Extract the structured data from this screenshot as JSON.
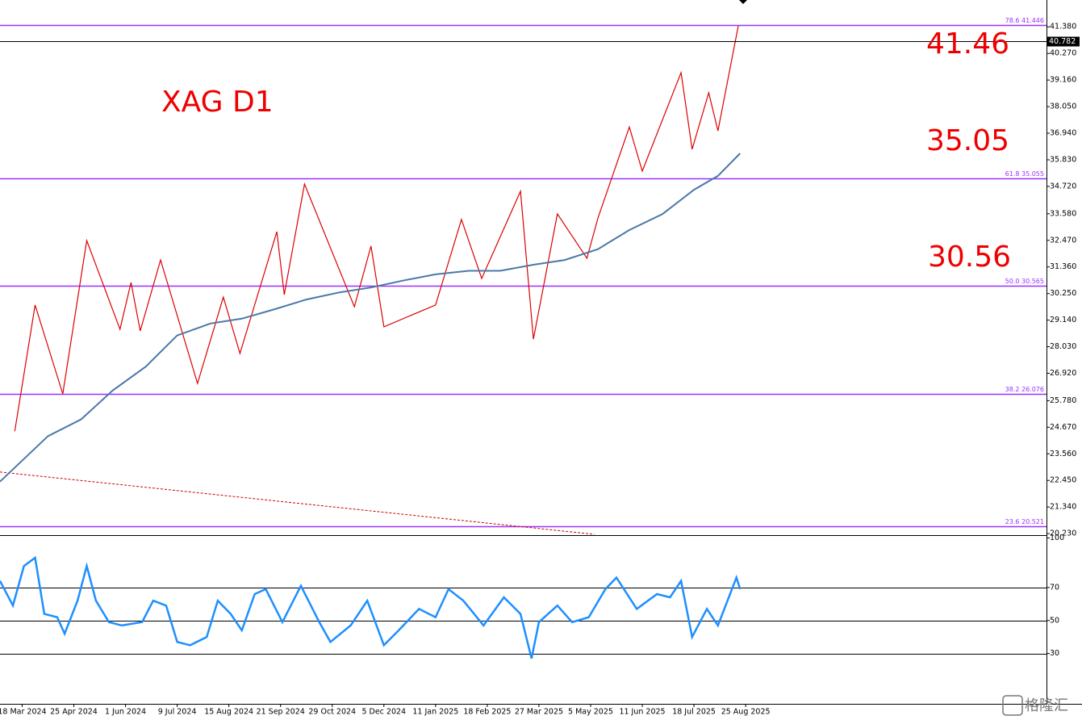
{
  "chart_data": [
    {
      "type": "line",
      "title": "XAG D1",
      "annotations": [
        "41.46",
        "35.05",
        "30.56"
      ],
      "xlim": [
        -12,
        555
      ],
      "xticks": [
        {
          "value": 0,
          "label": "18 Mar 2024"
        },
        {
          "value": 28,
          "label": "25 Apr 2024"
        },
        {
          "value": 56,
          "label": "1 Jun 2024"
        },
        {
          "value": 84,
          "label": "9 Jul 2024"
        },
        {
          "value": 112,
          "label": "15 Aug 2024"
        },
        {
          "value": 140,
          "label": "21 Sep 2024"
        },
        {
          "value": 168,
          "label": "29 Oct 2024"
        },
        {
          "value": 196,
          "label": "5 Dec 2024"
        },
        {
          "value": 224,
          "label": "11 Jan 2025"
        },
        {
          "value": 252,
          "label": "18 Feb 2025"
        },
        {
          "value": 280,
          "label": "27 Mar 2025"
        },
        {
          "value": 308,
          "label": "5 May 2025"
        },
        {
          "value": 336,
          "label": "11 Jun 2025"
        },
        {
          "value": 364,
          "label": "18 Jul 2025"
        },
        {
          "value": 392,
          "label": "25 Aug 2025"
        }
      ],
      "ylim": [
        20.2,
        42.5
      ],
      "yticks": [
        {
          "value": 41.38,
          "label": "41.380"
        },
        {
          "value": 40.27,
          "label": "40.270"
        },
        {
          "value": 39.16,
          "label": "39.160"
        },
        {
          "value": 38.05,
          "label": "38.050"
        },
        {
          "value": 36.94,
          "label": "36.940"
        },
        {
          "value": 35.83,
          "label": "35.830"
        },
        {
          "value": 34.72,
          "label": "34.720"
        },
        {
          "value": 33.58,
          "label": "33.580"
        },
        {
          "value": 32.47,
          "label": "32.470"
        },
        {
          "value": 31.36,
          "label": "31.360"
        },
        {
          "value": 30.25,
          "label": "30.250"
        },
        {
          "value": 29.14,
          "label": "29.140"
        },
        {
          "value": 28.03,
          "label": "28.030"
        },
        {
          "value": 26.92,
          "label": "26.920"
        },
        {
          "value": 25.78,
          "label": "25.780"
        },
        {
          "value": 24.67,
          "label": "24.670"
        },
        {
          "value": 23.56,
          "label": "23.560"
        },
        {
          "value": 22.45,
          "label": "22.450"
        },
        {
          "value": 21.34,
          "label": "21.340"
        },
        {
          "value": 20.23,
          "label": "20.230"
        }
      ],
      "levels": [
        {
          "value": 41.446,
          "label": "78.6 41.446"
        },
        {
          "value": 35.055,
          "label": "61.8 35.055"
        },
        {
          "value": 30.565,
          "label": "50.0 30.565"
        },
        {
          "value": 26.076,
          "label": "38.2 26.076"
        },
        {
          "value": 20.521,
          "label": "23.6 20.521"
        }
      ],
      "level_color": "#9b30ff",
      "last_price": {
        "value": 40.782,
        "label": "40.782"
      },
      "series": [
        {
          "color": "#dd0000",
          "x": [
            -4,
            7,
            22,
            35,
            53,
            59,
            64,
            75,
            95,
            109,
            118,
            138,
            142,
            153,
            180,
            189,
            196,
            224,
            238,
            249,
            270,
            277,
            290,
            306,
            312,
            329,
            336,
            357,
            363,
            372,
            377,
            388
          ],
          "values": [
            24.5,
            29.77,
            26.06,
            32.46,
            28.76,
            30.71,
            28.69,
            31.65,
            26.5,
            30.1,
            27.75,
            32.83,
            30.2,
            34.82,
            29.7,
            32.23,
            28.86,
            29.77,
            33.34,
            30.88,
            34.52,
            28.35,
            33.57,
            31.72,
            33.4,
            37.2,
            35.36,
            39.47,
            36.27,
            38.63,
            37.04,
            41.42
          ]
        },
        {
          "color": "#4a78a8",
          "x": [
            -12,
            14,
            32,
            49,
            67,
            84,
            102,
            119,
            137,
            154,
            172,
            189,
            207,
            224,
            242,
            259,
            277,
            294,
            312,
            329,
            347,
            364,
            377,
            389
          ],
          "values": [
            22.4,
            24.3,
            25.0,
            26.2,
            27.2,
            28.5,
            29.0,
            29.2,
            29.6,
            30.0,
            30.3,
            30.5,
            30.8,
            31.05,
            31.2,
            31.2,
            31.45,
            31.65,
            32.1,
            32.9,
            33.57,
            34.58,
            35.16,
            36.1
          ]
        }
      ],
      "trend_line": {
        "color": "#cc0000",
        "x": [
          -12,
          310
        ],
        "values": [
          22.8,
          20.2
        ]
      }
    },
    {
      "type": "line",
      "xlim": [
        -12,
        555
      ],
      "ylim": [
        0,
        100
      ],
      "yticks": [
        30,
        50,
        70,
        100
      ],
      "levels": [
        30,
        50,
        70
      ],
      "series": [
        {
          "color": "#1e8fff",
          "x": [
            -12,
            -5,
            1,
            7,
            12,
            19,
            23,
            30,
            35,
            40,
            47,
            54,
            65,
            71,
            78,
            84,
            91,
            100,
            106,
            113,
            119,
            126,
            132,
            141,
            151,
            161,
            167,
            178,
            187,
            196,
            204,
            215,
            224,
            231,
            239,
            250,
            261,
            270,
            276,
            280,
            290,
            298,
            307,
            316,
            322,
            333,
            344,
            351,
            357,
            363,
            371,
            377,
            387,
            389
          ],
          "values": [
            74,
            59,
            83,
            88,
            54,
            52,
            42,
            62,
            83,
            62,
            49,
            47,
            49,
            62,
            59,
            37,
            35,
            40,
            62,
            54,
            44,
            66,
            69,
            49,
            71,
            49,
            37,
            47,
            62,
            35,
            44,
            57,
            52,
            69,
            62,
            47,
            64,
            54,
            27,
            49,
            59,
            49,
            52,
            69,
            76,
            57,
            66,
            64,
            74,
            40,
            57,
            47,
            76,
            69
          ]
        }
      ]
    }
  ],
  "watermark": "格隆汇"
}
